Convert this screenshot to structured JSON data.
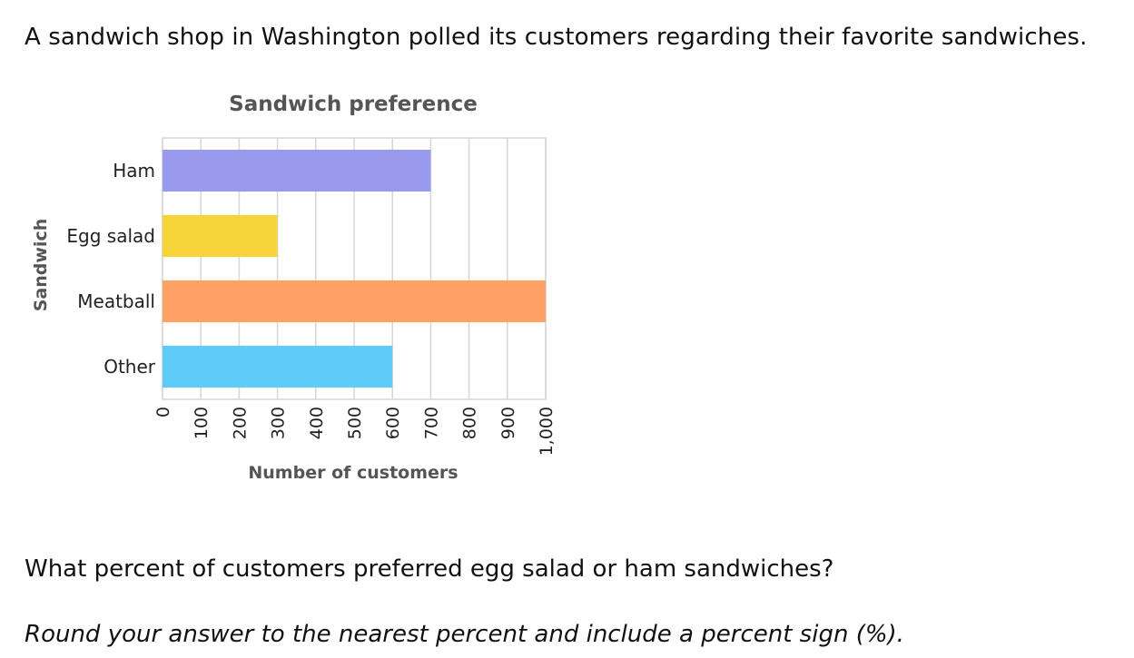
{
  "question": {
    "intro": "A sandwich shop in Washington polled its customers regarding their favorite sandwiches.",
    "prompt": "What percent of customers preferred egg salad or ham sandwiches?",
    "instruction": "Round your answer to the nearest percent and include a percent sign (%)."
  },
  "chart_data": {
    "type": "bar",
    "orientation": "horizontal",
    "title": "Sandwich preference",
    "xlabel": "Number of customers",
    "ylabel": "Sandwich",
    "categories": [
      "Ham",
      "Egg salad",
      "Meatball",
      "Other"
    ],
    "values": [
      700,
      300,
      1000,
      600
    ],
    "colors": [
      "#9999ee",
      "#f7d43a",
      "#ffa064",
      "#5ecbf8"
    ],
    "xlim": [
      0,
      1000
    ],
    "xticks": [
      0,
      100,
      200,
      300,
      400,
      500,
      600,
      700,
      800,
      900,
      1000
    ],
    "xtick_labels": [
      "0",
      "100",
      "200",
      "300",
      "400",
      "500",
      "600",
      "700",
      "800",
      "900",
      "1,000"
    ],
    "grid": true
  }
}
